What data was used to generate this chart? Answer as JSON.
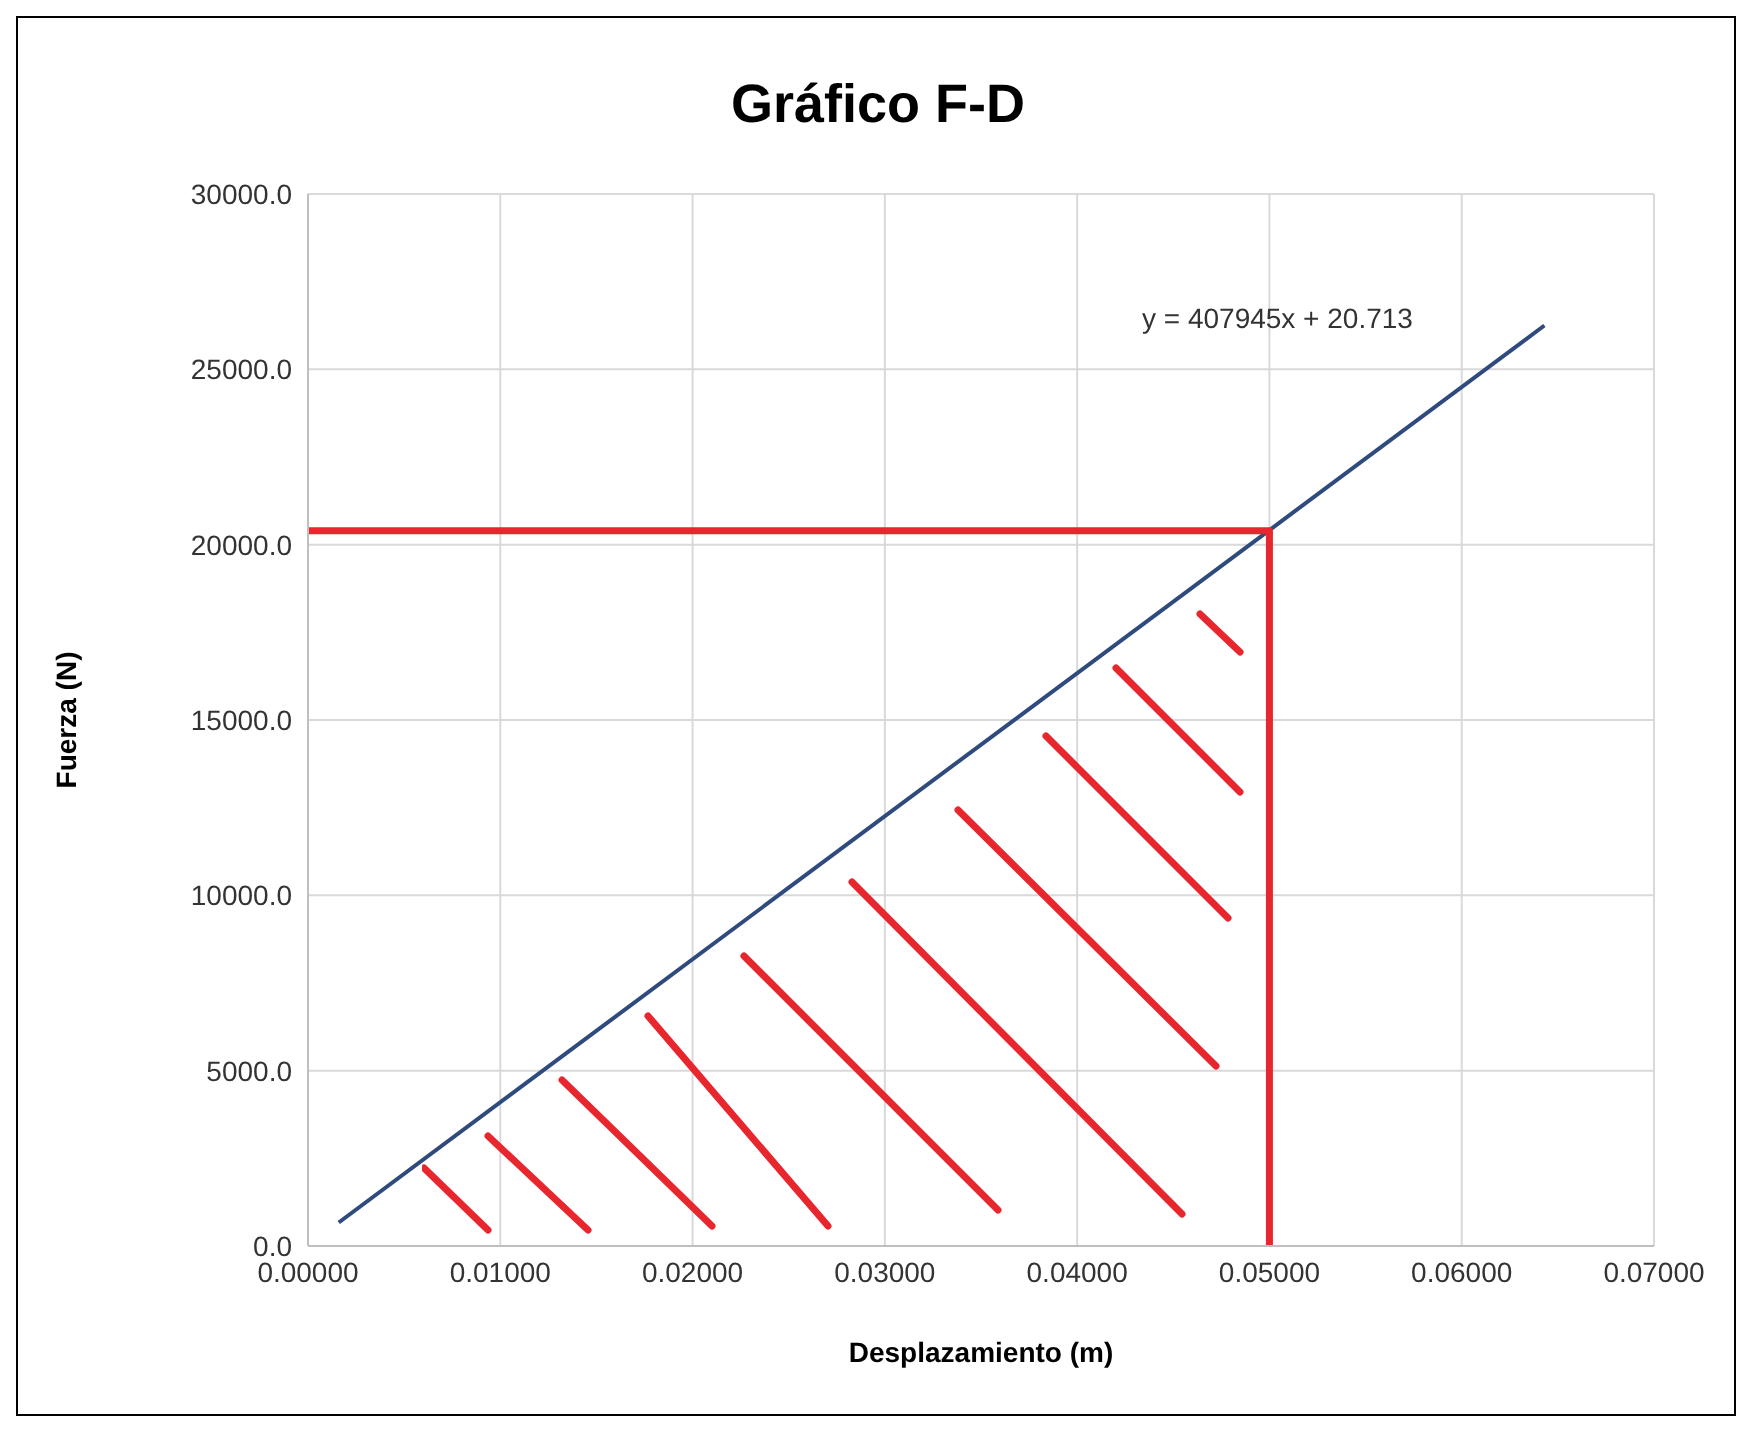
{
  "chart_data": {
    "type": "line",
    "title": "Gráfico F-D",
    "xlabel": "Desplazamiento (m)",
    "ylabel": "Fuerza (N)",
    "series": [
      {
        "color": "#2f4a7c",
        "x": [
          0.0016,
          0.0643
        ],
        "values": [
          670,
          26250
        ]
      },
      {
        "color": "#e8262e",
        "x": [
          0,
          0.05,
          0.05
        ],
        "values": [
          20400,
          20400,
          0
        ]
      }
    ],
    "xlim": [
      0,
      0.07
    ],
    "xticks": [
      {
        "value": 0,
        "label": "0.00000"
      },
      {
        "value": 0.01,
        "label": "0.01000"
      },
      {
        "value": 0.02,
        "label": "0.02000"
      },
      {
        "value": 0.03,
        "label": "0.03000"
      },
      {
        "value": 0.04,
        "label": "0.04000"
      },
      {
        "value": 0.05,
        "label": "0.05000"
      },
      {
        "value": 0.06,
        "label": "0.06000"
      },
      {
        "value": 0.07,
        "label": "0.07000"
      }
    ],
    "ylim": [
      0,
      30000
    ],
    "yticks": [
      {
        "value": 0,
        "label": "0.0"
      },
      {
        "value": 5000,
        "label": "5000.0"
      },
      {
        "value": 10000,
        "label": "10000.0"
      },
      {
        "value": 15000,
        "label": "15000.0"
      },
      {
        "value": 20000,
        "label": "20000.0"
      },
      {
        "value": 25000,
        "label": "25000.0"
      },
      {
        "value": 30000,
        "label": "30000.0"
      }
    ],
    "annotations": [
      "y = 407945x + 20.713"
    ],
    "grid": true,
    "marker": "none",
    "legend": false
  }
}
